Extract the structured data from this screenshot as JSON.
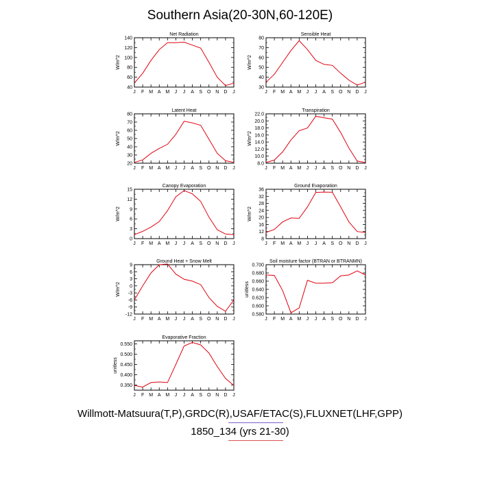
{
  "main_title": "Southern Asia(20-30N,60-120E)",
  "footer": {
    "line1": "Willmott-Matsuura(T,P),GRDC(R),USAF/ETAC(S),FLUXNET(LHF,GPP)",
    "line2": "1850_134 (yrs 21-30)"
  },
  "colors": {
    "series": "#e0000f",
    "frame": "#000000"
  },
  "chart_data": [
    {
      "type": "line",
      "title": "Net Radiation",
      "ylabel": "W/m^2",
      "x": [
        "J",
        "F",
        "M",
        "A",
        "M",
        "J",
        "J",
        "A",
        "S",
        "O",
        "N",
        "D",
        "J"
      ],
      "yticks": [
        "40",
        "60",
        "80",
        "100",
        "120",
        "140"
      ],
      "ylim": [
        40,
        140
      ],
      "values": [
        48,
        68,
        94,
        116,
        130,
        130,
        131,
        125,
        119,
        90,
        60,
        43,
        48
      ]
    },
    {
      "type": "line",
      "title": "Sensible Heat",
      "ylabel": "W/m^2",
      "x": [
        "J",
        "F",
        "M",
        "A",
        "M",
        "J",
        "J",
        "A",
        "S",
        "O",
        "N",
        "D",
        "J"
      ],
      "yticks": [
        "30",
        "40",
        "50",
        "60",
        "70",
        "80"
      ],
      "ylim": [
        30,
        80
      ],
      "values": [
        35,
        43,
        55,
        67,
        77,
        68,
        57,
        53,
        52,
        44,
        37,
        32,
        35
      ]
    },
    {
      "type": "line",
      "title": "Latent Heat",
      "ylabel": "W/m^2",
      "x": [
        "J",
        "F",
        "M",
        "A",
        "M",
        "J",
        "J",
        "A",
        "S",
        "O",
        "N",
        "D",
        "J"
      ],
      "yticks": [
        "20",
        "30",
        "40",
        "50",
        "60",
        "70",
        "80"
      ],
      "ylim": [
        20,
        80
      ],
      "values": [
        21,
        24,
        32,
        38,
        43,
        55,
        71,
        69,
        66,
        49,
        32,
        23,
        21
      ]
    },
    {
      "type": "line",
      "title": "Transpiration",
      "ylabel": "W/m^2",
      "x": [
        "J",
        "F",
        "M",
        "A",
        "M",
        "J",
        "J",
        "A",
        "S",
        "O",
        "N",
        "D",
        "J"
      ],
      "yticks": [
        "8.0",
        "10.0",
        "12.0",
        "14.0",
        "16.0",
        "18.0",
        "20.0",
        "22.0"
      ],
      "ylim": [
        8,
        22
      ],
      "values": [
        8.2,
        8.9,
        11.2,
        14.6,
        17.2,
        18.0,
        21.3,
        20.9,
        20.5,
        16.7,
        12.3,
        8.6,
        8.2
      ]
    },
    {
      "type": "line",
      "title": "Canopy Evaporation",
      "ylabel": "W/m^2",
      "x": [
        "J",
        "F",
        "M",
        "A",
        "M",
        "J",
        "J",
        "A",
        "S",
        "O",
        "N",
        "D",
        "J"
      ],
      "yticks": [
        "0",
        "3",
        "6",
        "9",
        "12",
        "15"
      ],
      "ylim": [
        0,
        15
      ],
      "values": [
        1.2,
        2.2,
        3.5,
        5.2,
        8.5,
        12.7,
        14.6,
        13.6,
        11.3,
        6.5,
        2.7,
        1.4,
        1.2
      ]
    },
    {
      "type": "line",
      "title": "Ground Evaporation",
      "ylabel": "W/m^2",
      "x": [
        "J",
        "F",
        "M",
        "A",
        "M",
        "J",
        "J",
        "A",
        "S",
        "O",
        "N",
        "D",
        "J"
      ],
      "yticks": [
        "8",
        "12",
        "16",
        "20",
        "24",
        "28",
        "32",
        "36"
      ],
      "ylim": [
        8,
        36
      ],
      "values": [
        11.5,
        13.2,
        17.5,
        19.7,
        19.5,
        26.0,
        34.2,
        34.4,
        34.3,
        26.0,
        17.5,
        12.0,
        11.5
      ]
    },
    {
      "type": "line",
      "title": "Ground Heat + Snow Melt",
      "ylabel": "W/m^2",
      "x": [
        "J",
        "F",
        "M",
        "A",
        "M",
        "J",
        "J",
        "A",
        "S",
        "O",
        "N",
        "D",
        "J"
      ],
      "yticks": [
        "-12",
        "-9",
        "-6",
        "-3",
        "0",
        "3",
        "6",
        "9"
      ],
      "ylim": [
        -12,
        9
      ],
      "values": [
        -6.0,
        0.0,
        5.5,
        9.0,
        9.3,
        5.0,
        2.8,
        2.0,
        0.5,
        -5.0,
        -8.7,
        -10.8,
        -6.0
      ]
    },
    {
      "type": "line",
      "title": "Soil moisture factor (BTRAN or BTRANMN)",
      "ylabel": "unitless",
      "x": [
        "J",
        "F",
        "M",
        "A",
        "M",
        "J",
        "J",
        "A",
        "S",
        "O",
        "N",
        "D",
        "J"
      ],
      "yticks": [
        "0.580",
        "0.600",
        "0.620",
        "0.640",
        "0.660",
        "0.680",
        "0.700"
      ],
      "ylim": [
        0.58,
        0.7
      ],
      "values": [
        0.675,
        0.674,
        0.637,
        0.583,
        0.595,
        0.662,
        0.655,
        0.655,
        0.656,
        0.673,
        0.675,
        0.685,
        0.675
      ]
    },
    {
      "type": "line",
      "title": "Evaporative Fraction",
      "ylabel": "unitless",
      "x": [
        "J",
        "F",
        "M",
        "A",
        "M",
        "J",
        "J",
        "A",
        "S",
        "O",
        "N",
        "D",
        "J"
      ],
      "yticks": [
        "0.350",
        "0.400",
        "0.450",
        "0.500",
        "0.550"
      ],
      "ylim": [
        0.325,
        0.565
      ],
      "values": [
        0.348,
        0.34,
        0.362,
        0.365,
        0.362,
        0.45,
        0.54,
        0.557,
        0.545,
        0.505,
        0.44,
        0.382,
        0.348
      ]
    }
  ]
}
